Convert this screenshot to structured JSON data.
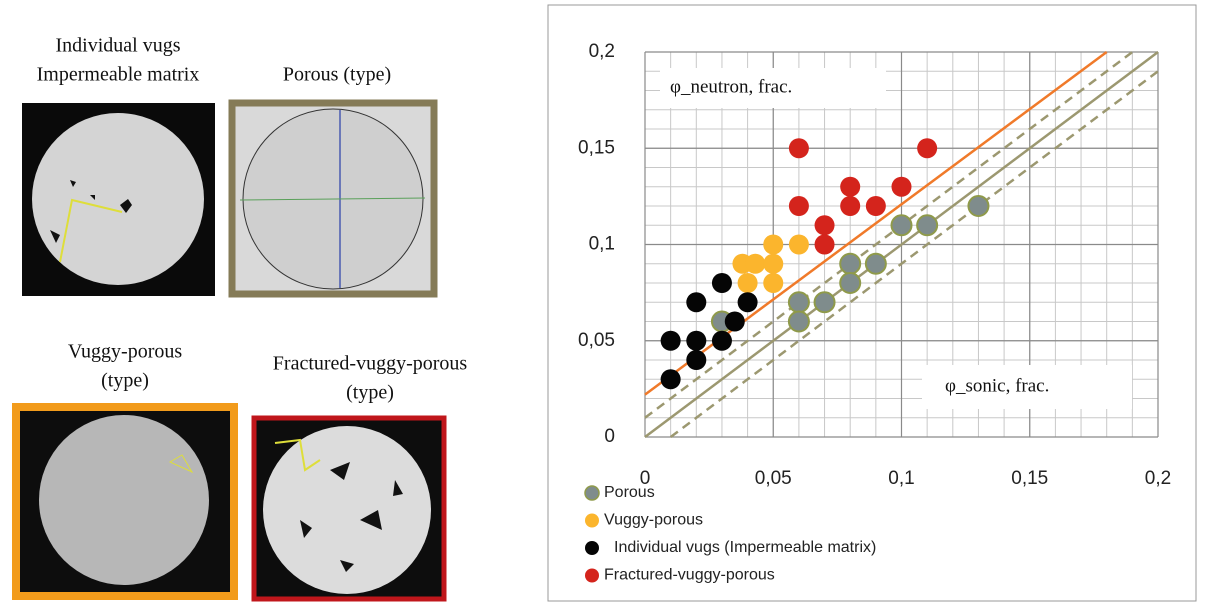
{
  "images": [
    {
      "caption": [
        "Individual vugs",
        "Impermeable matrix"
      ]
    },
    {
      "caption": [
        "Porous (type)"
      ]
    },
    {
      "caption": [
        "Vuggy-porous",
        "(type)"
      ]
    },
    {
      "caption": [
        "Fractured-vuggy-porous",
        "(type)"
      ]
    }
  ],
  "chart_data": {
    "type": "scatter",
    "x_label": "φ_sonic, frac.",
    "y_label": "φ_neutron, frac.",
    "xlim": [
      0,
      0.2
    ],
    "ylim": [
      0,
      0.2
    ],
    "xticks": [
      {
        "value": 0,
        "label": "0"
      },
      {
        "value": 0.05,
        "label": "0,05"
      },
      {
        "value": 0.1,
        "label": "0,1"
      },
      {
        "value": 0.15,
        "label": "0,15"
      },
      {
        "value": 0.2,
        "label": "0,2"
      }
    ],
    "yticks": [
      {
        "value": 0,
        "label": "0"
      },
      {
        "value": 0.05,
        "label": "0,05"
      },
      {
        "value": 0.1,
        "label": "0,1"
      },
      {
        "value": 0.15,
        "label": "0,15"
      },
      {
        "value": 0.2,
        "label": "0,2"
      }
    ],
    "minor_xticks": [
      0,
      0.01,
      0.02,
      0.03,
      0.04,
      0.05,
      0.06,
      0.07,
      0.08,
      0.09,
      0.1,
      0.11,
      0.12,
      0.13,
      0.14,
      0.15,
      0.16,
      0.17,
      0.18,
      0.19,
      0.2
    ],
    "minor_yticks": [
      0,
      0.01,
      0.02,
      0.03,
      0.04,
      0.05,
      0.06,
      0.07,
      0.08,
      0.09,
      0.1,
      0.11,
      0.12,
      0.13,
      0.14,
      0.15,
      0.16,
      0.17,
      0.18,
      0.19,
      0.2
    ],
    "grid": true,
    "legend": "bottom-left",
    "series": [
      {
        "name": "Porous",
        "color": "#7f8c8c",
        "x": [
          0.03,
          0.06,
          0.06,
          0.07,
          0.08,
          0.08,
          0.09,
          0.1,
          0.11,
          0.13
        ],
        "values": [
          0.06,
          0.07,
          0.06,
          0.07,
          0.09,
          0.08,
          0.09,
          0.11,
          0.11,
          0.12
        ]
      },
      {
        "name": "Vuggy-porous",
        "color": "#fbb52d",
        "x": [
          0.038,
          0.043,
          0.05,
          0.05,
          0.04,
          0.05,
          0.06
        ],
        "values": [
          0.09,
          0.09,
          0.1,
          0.09,
          0.08,
          0.08,
          0.1
        ]
      },
      {
        "name": "Individual vugs (Impermeable matrix)",
        "color": "#050505",
        "x": [
          0.01,
          0.01,
          0.02,
          0.02,
          0.02,
          0.03,
          0.03,
          0.035,
          0.04
        ],
        "values": [
          0.05,
          0.03,
          0.07,
          0.05,
          0.04,
          0.08,
          0.05,
          0.06,
          0.07
        ]
      },
      {
        "name": "Fractured-vuggy-porous",
        "color": "#d4241c",
        "x": [
          0.06,
          0.06,
          0.07,
          0.07,
          0.08,
          0.08,
          0.09,
          0.1,
          0.11
        ],
        "values": [
          0.15,
          0.12,
          0.11,
          0.1,
          0.13,
          0.12,
          0.12,
          0.13,
          0.15
        ]
      }
    ],
    "lines": [
      {
        "color": "#f07a2a",
        "dash": false,
        "x": [
          0,
          0.18
        ],
        "values": [
          0.022,
          0.2
        ]
      },
      {
        "color": "#9c9870",
        "dash": false,
        "x": [
          0,
          0.2
        ],
        "values": [
          0,
          0.2
        ]
      },
      {
        "color": "#9c9870",
        "dash": true,
        "x": [
          0,
          0.19
        ],
        "values": [
          0.01,
          0.2
        ]
      },
      {
        "color": "#9c9870",
        "dash": true,
        "x": [
          0.01,
          0.2
        ],
        "values": [
          0,
          0.19
        ]
      }
    ]
  }
}
